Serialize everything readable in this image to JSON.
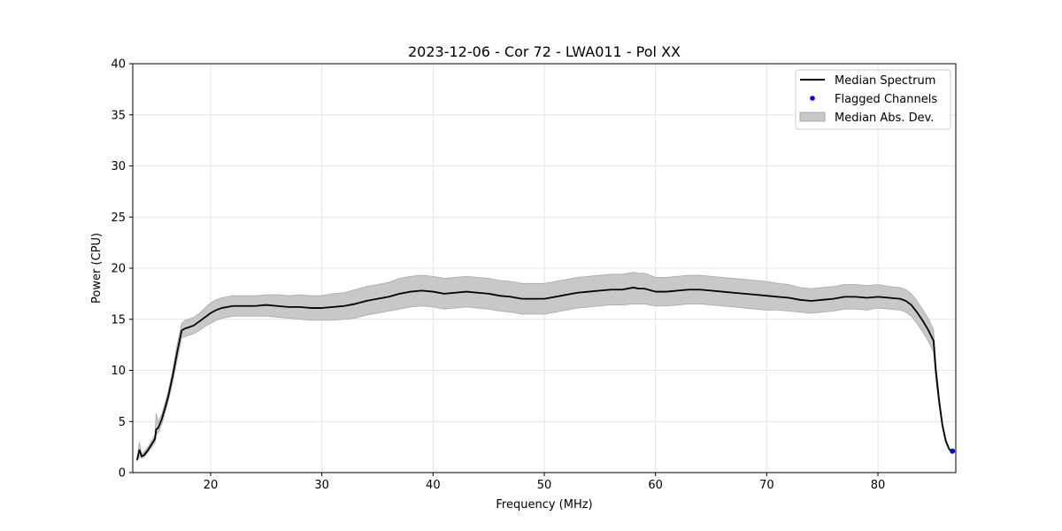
{
  "chart_data": {
    "type": "line",
    "title": "2023-12-06 - Cor 72 - LWA011 - Pol XX",
    "xlabel": "Frequency (MHz)",
    "ylabel": "Power (CPU)",
    "xlim": [
      13,
      87
    ],
    "ylim": [
      0,
      40
    ],
    "xticks": [
      20,
      30,
      40,
      50,
      60,
      70,
      80
    ],
    "yticks": [
      0,
      5,
      10,
      15,
      20,
      25,
      30,
      35,
      40
    ],
    "xtick_labels": [
      "20",
      "30",
      "40",
      "50",
      "60",
      "70",
      "80"
    ],
    "ytick_labels": [
      "0",
      "5",
      "10",
      "15",
      "20",
      "25",
      "30",
      "35",
      "40"
    ],
    "grid": true,
    "legend_position": "top-right",
    "colors": {
      "median": "#000000",
      "flagged": "#0000ff",
      "band_fill": "#c8c8c8",
      "band_edge": "#a8a8a8",
      "grid": "#e3e3e3"
    },
    "series": [
      {
        "name": "Median Spectrum",
        "kind": "line",
        "x": [
          13.4,
          13.6,
          13.8,
          14.0,
          14.3,
          14.6,
          15.0,
          15.1,
          15.3,
          15.6,
          15.9,
          16.2,
          16.6,
          17.0,
          17.4,
          17.7,
          18.0,
          18.5,
          19.0,
          19.5,
          20.0,
          20.5,
          21.0,
          22.0,
          23.0,
          24.0,
          25.0,
          26.0,
          27.0,
          28.0,
          29.0,
          30.0,
          31.0,
          32.0,
          33.0,
          34.0,
          35.0,
          36.0,
          37.0,
          38.0,
          39.0,
          40.0,
          41.0,
          42.0,
          43.0,
          44.0,
          45.0,
          46.0,
          47.0,
          48.0,
          49.0,
          50.0,
          51.0,
          52.0,
          53.0,
          54.0,
          55.0,
          56.0,
          57.0,
          58.0,
          58.5,
          59.0,
          60.0,
          61.0,
          62.0,
          63.0,
          64.0,
          65.0,
          66.0,
          67.0,
          68.0,
          69.0,
          70.0,
          71.0,
          72.0,
          73.0,
          74.0,
          75.0,
          76.0,
          77.0,
          78.0,
          79.0,
          80.0,
          81.0,
          82.0,
          82.5,
          83.0,
          83.5,
          84.0,
          84.5,
          85.0,
          85.2,
          85.5,
          85.8,
          86.1,
          86.4,
          86.7
        ],
        "y": [
          1.3,
          2.2,
          1.6,
          1.7,
          2.1,
          2.6,
          3.3,
          4.2,
          4.4,
          5.2,
          6.3,
          7.5,
          9.5,
          11.8,
          13.9,
          14.1,
          14.2,
          14.4,
          14.8,
          15.2,
          15.6,
          15.9,
          16.1,
          16.3,
          16.3,
          16.3,
          16.4,
          16.3,
          16.2,
          16.2,
          16.1,
          16.1,
          16.2,
          16.3,
          16.5,
          16.8,
          17.0,
          17.2,
          17.5,
          17.7,
          17.8,
          17.7,
          17.5,
          17.6,
          17.7,
          17.6,
          17.5,
          17.3,
          17.2,
          17.0,
          17.0,
          17.0,
          17.2,
          17.4,
          17.6,
          17.7,
          17.8,
          17.9,
          17.9,
          18.1,
          18.0,
          18.0,
          17.7,
          17.7,
          17.8,
          17.9,
          17.9,
          17.8,
          17.7,
          17.6,
          17.5,
          17.4,
          17.3,
          17.2,
          17.1,
          16.9,
          16.8,
          16.9,
          17.0,
          17.2,
          17.2,
          17.1,
          17.2,
          17.1,
          17.0,
          16.8,
          16.4,
          15.7,
          14.9,
          14.0,
          12.9,
          10.0,
          7.0,
          4.6,
          3.1,
          2.3,
          2.0
        ]
      },
      {
        "name": "Flagged Channels",
        "kind": "scatter",
        "x": [
          86.7
        ],
        "y": [
          2.1
        ]
      },
      {
        "name": "Median Abs. Dev.",
        "kind": "band",
        "x": [
          13.4,
          13.6,
          13.8,
          14.0,
          14.3,
          14.6,
          15.0,
          15.1,
          15.3,
          15.6,
          15.9,
          16.2,
          16.6,
          17.0,
          17.4,
          17.7,
          18.0,
          18.5,
          19.0,
          19.5,
          20.0,
          20.5,
          21.0,
          22.0,
          23.0,
          24.0,
          25.0,
          26.0,
          27.0,
          28.0,
          29.0,
          30.0,
          31.0,
          32.0,
          33.0,
          34.0,
          35.0,
          36.0,
          37.0,
          38.0,
          39.0,
          40.0,
          41.0,
          42.0,
          43.0,
          44.0,
          45.0,
          46.0,
          47.0,
          48.0,
          49.0,
          50.0,
          51.0,
          52.0,
          53.0,
          54.0,
          55.0,
          56.0,
          57.0,
          58.0,
          58.5,
          59.0,
          60.0,
          61.0,
          62.0,
          63.0,
          64.0,
          65.0,
          66.0,
          67.0,
          68.0,
          69.0,
          70.0,
          71.0,
          72.0,
          73.0,
          74.0,
          75.0,
          76.0,
          77.0,
          78.0,
          79.0,
          80.0,
          81.0,
          82.0,
          82.5,
          83.0,
          83.5,
          84.0,
          84.5,
          85.0,
          85.2,
          85.5,
          85.8,
          86.1,
          86.4,
          86.7
        ],
        "lower": [
          1.1,
          1.6,
          1.4,
          1.5,
          1.9,
          2.3,
          2.9,
          3.7,
          3.9,
          4.7,
          5.8,
          7.0,
          8.9,
          11.0,
          13.2,
          13.3,
          13.4,
          13.6,
          13.9,
          14.3,
          14.6,
          14.9,
          15.1,
          15.3,
          15.3,
          15.3,
          15.3,
          15.2,
          15.1,
          15.0,
          14.9,
          14.9,
          14.9,
          15.0,
          15.1,
          15.4,
          15.6,
          15.8,
          16.0,
          16.2,
          16.3,
          16.2,
          16.0,
          16.1,
          16.2,
          16.1,
          16.0,
          15.8,
          15.7,
          15.5,
          15.5,
          15.5,
          15.7,
          15.9,
          16.1,
          16.2,
          16.3,
          16.4,
          16.4,
          16.5,
          16.5,
          16.5,
          16.3,
          16.3,
          16.4,
          16.5,
          16.5,
          16.4,
          16.3,
          16.2,
          16.1,
          16.0,
          15.9,
          15.9,
          15.8,
          15.7,
          15.6,
          15.7,
          15.8,
          16.0,
          16.0,
          15.9,
          16.1,
          16.0,
          15.9,
          15.7,
          15.3,
          14.6,
          13.8,
          12.9,
          11.8,
          9.2,
          6.5,
          4.3,
          2.9,
          2.2,
          1.9
        ],
        "upper": [
          1.5,
          3.0,
          1.8,
          2.0,
          2.4,
          2.9,
          3.7,
          5.8,
          4.9,
          5.7,
          6.8,
          8.0,
          10.1,
          12.6,
          14.6,
          14.9,
          15.0,
          15.2,
          15.6,
          16.1,
          16.6,
          16.9,
          17.1,
          17.3,
          17.3,
          17.3,
          17.4,
          17.4,
          17.3,
          17.4,
          17.3,
          17.3,
          17.5,
          17.6,
          17.9,
          18.2,
          18.4,
          18.6,
          19.0,
          19.2,
          19.3,
          19.2,
          19.0,
          19.1,
          19.2,
          19.1,
          19.0,
          18.8,
          18.7,
          18.5,
          18.5,
          18.5,
          18.7,
          18.9,
          19.1,
          19.2,
          19.3,
          19.4,
          19.4,
          19.6,
          19.5,
          19.5,
          19.1,
          19.1,
          19.2,
          19.3,
          19.3,
          19.2,
          19.1,
          19.0,
          18.9,
          18.8,
          18.7,
          18.5,
          18.4,
          18.1,
          18.0,
          18.1,
          18.2,
          18.4,
          18.4,
          18.3,
          18.4,
          18.2,
          18.1,
          17.9,
          17.5,
          16.8,
          16.0,
          15.1,
          14.0,
          10.8,
          7.5,
          4.9,
          3.3,
          2.4,
          2.1
        ]
      }
    ]
  }
}
